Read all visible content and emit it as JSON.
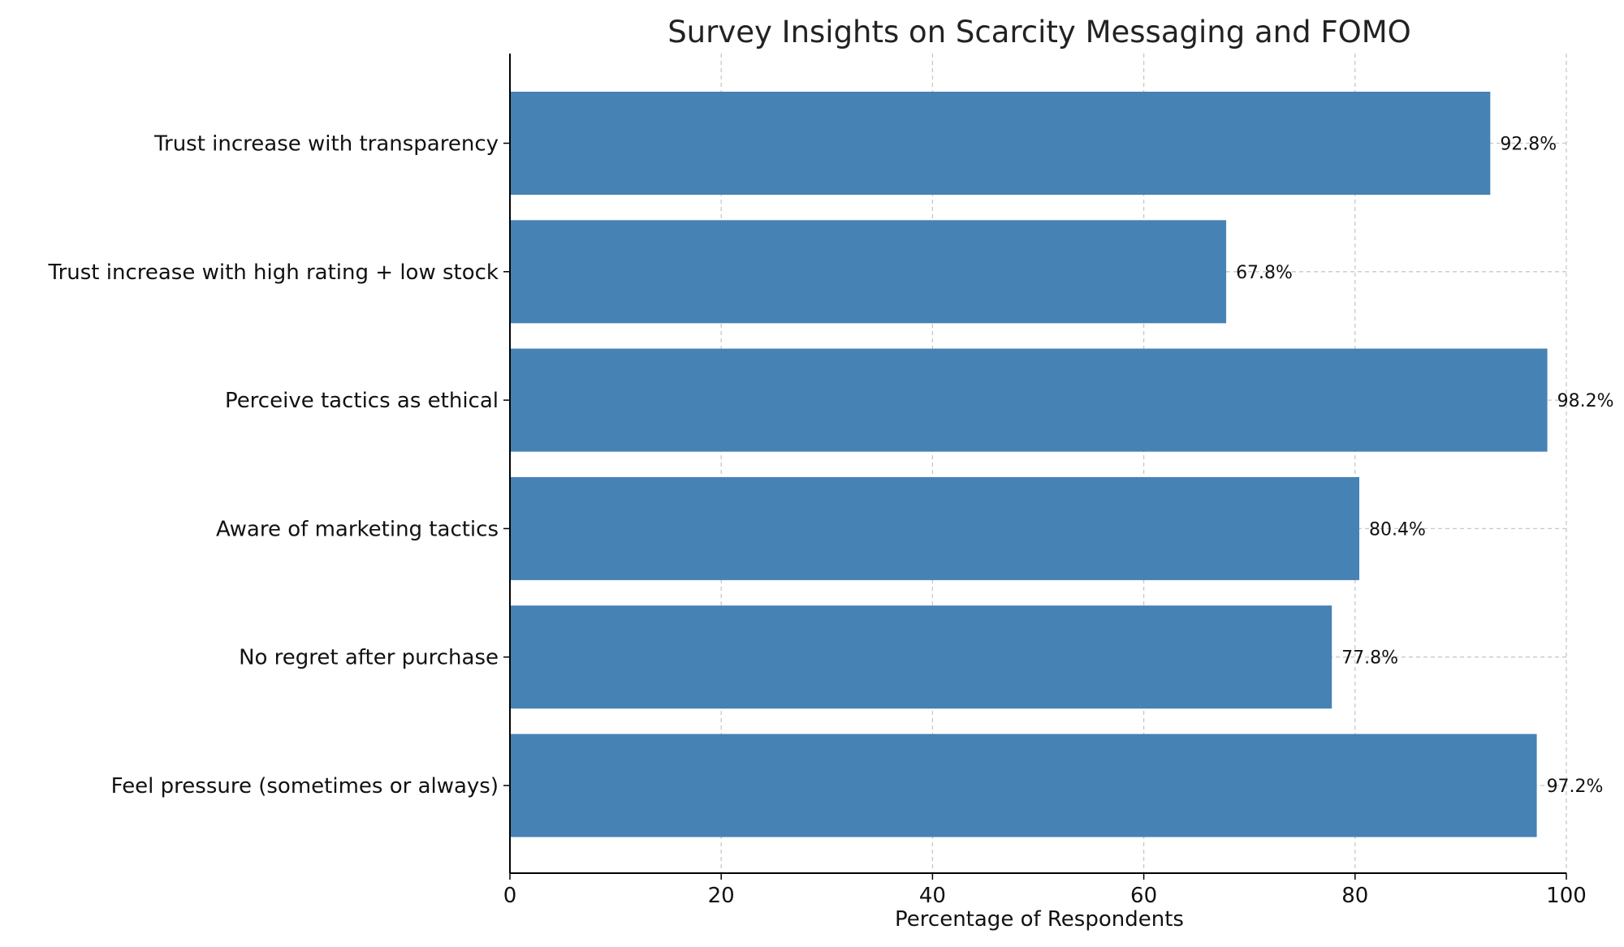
{
  "chart_data": {
    "type": "bar",
    "orientation": "horizontal",
    "title": "Survey Insights on Scarcity Messaging and FOMO",
    "xlabel": "Percentage of Respondents",
    "ylabel": "",
    "xlim": [
      0,
      100
    ],
    "xticks": [
      "0",
      "20",
      "40",
      "60",
      "80",
      "100"
    ],
    "categories": [
      "Feel pressure (sometimes or always)",
      "No regret after purchase",
      "Aware of marketing tactics",
      "Perceive tactics as ethical",
      "Trust increase with high rating + low stock",
      "Trust increase with transparency"
    ],
    "values": [
      97.2,
      77.8,
      80.4,
      98.2,
      67.8,
      92.8
    ],
    "value_labels": [
      "97.2%",
      "77.8%",
      "80.4%",
      "98.2%",
      "67.8%",
      "92.8%"
    ],
    "bar_color": "#4682b4",
    "grid": true
  }
}
